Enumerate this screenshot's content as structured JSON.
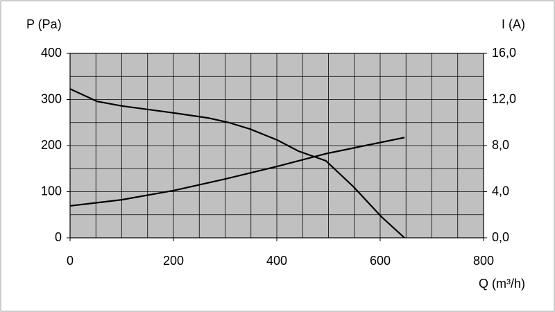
{
  "chart_data": {
    "type": "line",
    "y_label": "P (Pa)",
    "y2_label": "I (A)",
    "x_label": "Q (m³/h)",
    "xlim": [
      0,
      800
    ],
    "xticks": [
      0,
      200,
      400,
      600,
      800
    ],
    "x_grid": [
      0,
      50,
      100,
      150,
      200,
      250,
      300,
      350,
      400,
      450,
      500,
      550,
      600,
      650,
      700,
      750,
      800
    ],
    "ylim": [
      0,
      400
    ],
    "yticks": [
      0,
      100,
      200,
      300,
      400
    ],
    "y_grid": [
      0,
      50,
      100,
      150,
      200,
      250,
      300,
      350,
      400
    ],
    "y2lim": [
      0,
      16
    ],
    "y2ticks": [
      {
        "value": 0,
        "label": "0,0"
      },
      {
        "value": 4,
        "label": "4,0"
      },
      {
        "value": 8,
        "label": "8,0"
      },
      {
        "value": 12,
        "label": "12,0"
      },
      {
        "value": 16,
        "label": "16,0"
      }
    ],
    "plot_background": "#c0c0c0",
    "series": [
      {
        "color": "#000000",
        "axis": "y",
        "x": [
          0,
          52,
          100,
          200,
          267,
          307,
          348,
          401,
          442,
          495,
          549,
          603,
          647
        ],
        "values": [
          323,
          296,
          286,
          271,
          260,
          250,
          236,
          212,
          188,
          167,
          110,
          45,
          0
        ]
      },
      {
        "color": "#000000",
        "axis": "y2",
        "x": [
          0,
          100,
          200,
          300,
          401,
          495,
          647
        ],
        "values": [
          2.77,
          3.3,
          4.1,
          5.1,
          6.2,
          7.3,
          8.7
        ]
      }
    ]
  }
}
